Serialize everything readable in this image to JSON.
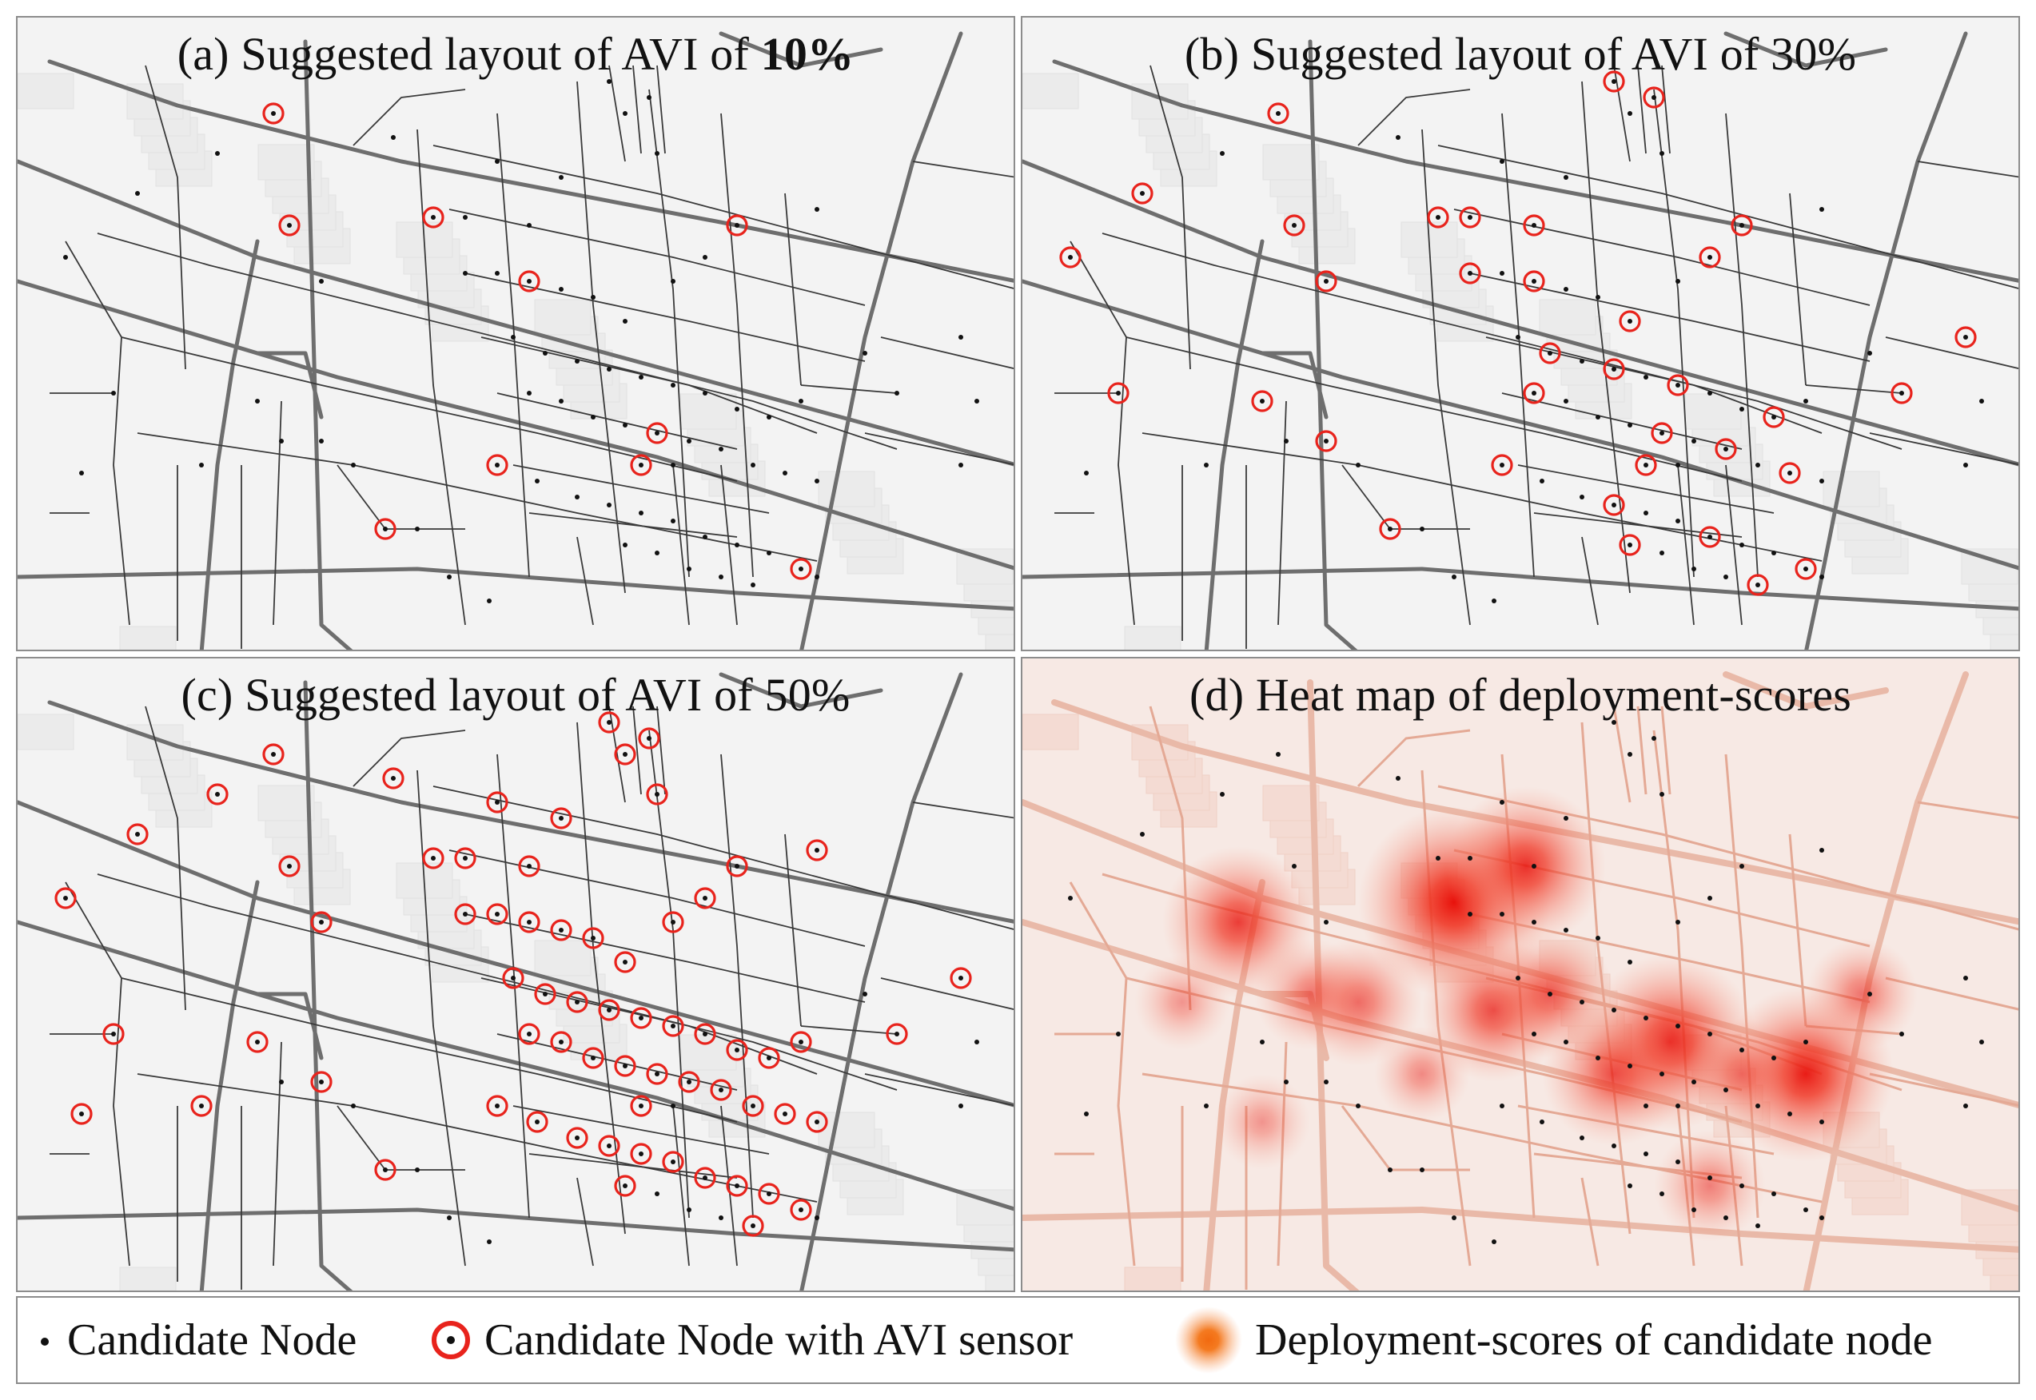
{
  "panels": [
    {
      "id": "a",
      "title_prefix": "(a) Suggested  layout of AVI of ",
      "title_bold": "10%",
      "kind": "layout",
      "coverage_percent": 10
    },
    {
      "id": "b",
      "title_prefix": "(b) Suggested  layout of AVI of 30%",
      "title_bold": "",
      "kind": "layout",
      "coverage_percent": 30
    },
    {
      "id": "c",
      "title_prefix": "(c) Suggested  layout of AVI of 50%",
      "title_bold": "",
      "kind": "layout",
      "coverage_percent": 50
    },
    {
      "id": "d",
      "title_prefix": "(d) Heat map of deployment-scores",
      "title_bold": "",
      "kind": "heatmap"
    }
  ],
  "legend": {
    "candidate_node": "Candidate Node",
    "candidate_node_sensor": "Candidate Node with AVI sensor",
    "deployment_scores": "Deployment-scores of candidate node"
  },
  "colors": {
    "sensor_ring": "#e8231c",
    "node": "#111111",
    "heat": "#f0301e",
    "heat_legend": "#f47a20",
    "road_major": "#6e6e6e",
    "road_minor": "#3a3a3a",
    "map_bg": "#f3f3f3",
    "heat_bg": "#f7e9e4"
  }
}
